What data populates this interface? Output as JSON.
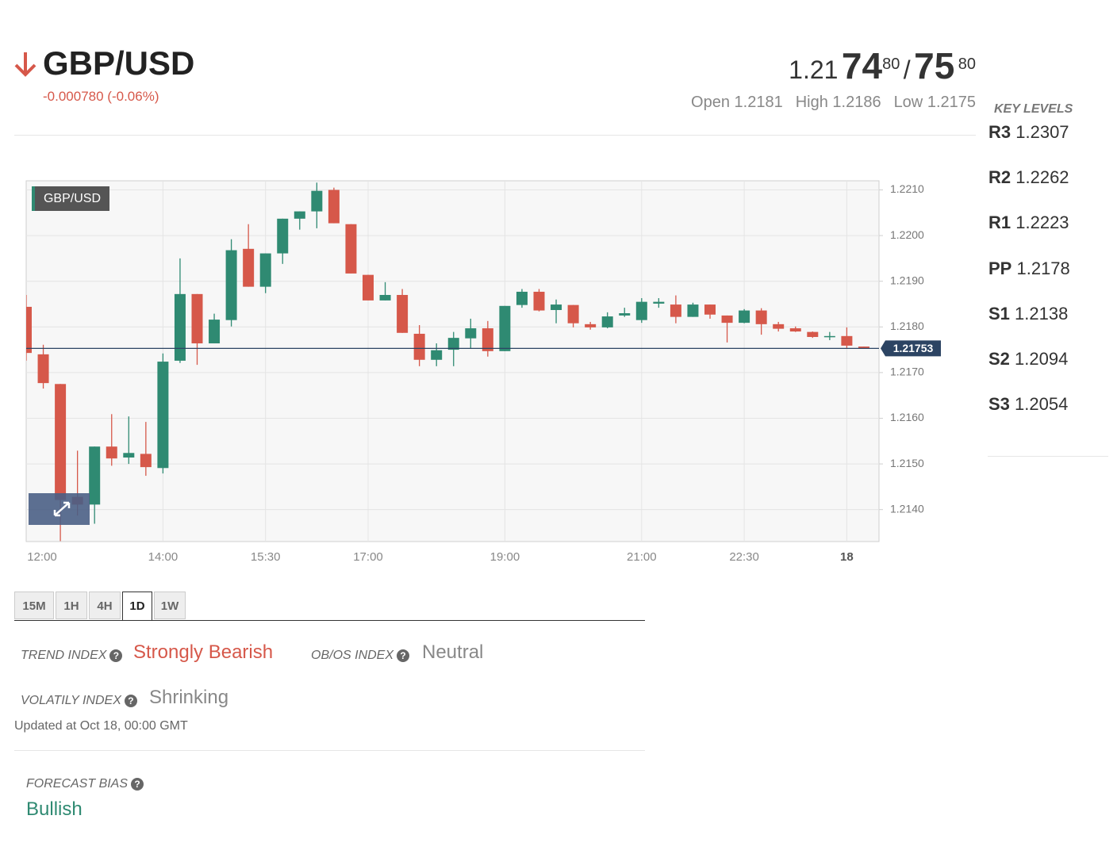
{
  "header": {
    "symbol": "GBP/USD",
    "change": "-0.000780 (-0.06%)",
    "bid": {
      "big": "1.21",
      "pips": "74",
      "fraction": "80"
    },
    "separator": "/",
    "ask": {
      "pips": "75",
      "fraction": "80"
    },
    "stats": [
      {
        "label": "Open",
        "value": "1.2181"
      },
      {
        "label": "High",
        "value": "1.2186"
      },
      {
        "label": "Low",
        "value": "1.2175"
      }
    ]
  },
  "key_levels": {
    "title": "KEY LEVELS",
    "levels": [
      {
        "name": "R3",
        "value": "1.2307"
      },
      {
        "name": "R2",
        "value": "1.2262"
      },
      {
        "name": "R1",
        "value": "1.2223"
      },
      {
        "name": "PP",
        "value": "1.2178"
      },
      {
        "name": "S1",
        "value": "1.2138"
      },
      {
        "name": "S2",
        "value": "1.2094"
      },
      {
        "name": "S3",
        "value": "1.2054"
      }
    ]
  },
  "chart_data": {
    "type": "candlestick",
    "label": "GBP/USD",
    "categories": [
      "12:00",
      null,
      null,
      null,
      null,
      null,
      null,
      null,
      "14:00",
      null,
      null,
      null,
      null,
      null,
      "15:30",
      null,
      null,
      null,
      null,
      null,
      "17:00",
      null,
      null,
      null,
      null,
      null,
      null,
      null,
      "19:00",
      null,
      null,
      null,
      null,
      null,
      null,
      null,
      "21:00",
      null,
      null,
      null,
      null,
      null,
      "22:30",
      null,
      null,
      null,
      null,
      null,
      "18",
      null
    ],
    "open": [
      1.21844,
      1.2174,
      1.21675,
      1.21428,
      1.21411,
      1.21538,
      1.21514,
      1.21522,
      1.21491,
      1.21726,
      1.21872,
      1.21764,
      1.21815,
      1.21971,
      1.21888,
      1.21961,
      1.22037,
      1.22053,
      1.221,
      1.22025,
      1.21914,
      1.21858,
      1.2187,
      1.21785,
      1.21728,
      1.2175,
      1.21775,
      1.21797,
      1.21747,
      1.21848,
      1.21877,
      1.21837,
      1.21848,
      1.21806,
      1.21799,
      1.21825,
      1.21815,
      1.21851,
      1.21849,
      1.21822,
      1.21849,
      1.21825,
      1.21809,
      1.21836,
      1.21806,
      1.21797,
      1.21789,
      1.21778,
      1.2178,
      1.21757
    ],
    "high": [
      1.2187,
      1.21761,
      1.21675,
      1.21529,
      1.21538,
      1.21609,
      1.21604,
      1.21592,
      1.21742,
      1.2195,
      1.21872,
      1.21829,
      1.21992,
      1.22025,
      1.21961,
      1.22037,
      1.22053,
      1.22116,
      1.22105,
      1.22025,
      1.21914,
      1.21898,
      1.21883,
      1.21804,
      1.21764,
      1.21789,
      1.21818,
      1.21813,
      1.21846,
      1.21883,
      1.21883,
      1.2186,
      1.21848,
      1.21811,
      1.21832,
      1.21842,
      1.21863,
      1.21863,
      1.21869,
      1.21853,
      1.21849,
      1.21825,
      1.21839,
      1.21841,
      1.21811,
      1.21801,
      1.2179,
      1.21789,
      1.21799,
      1.21757
    ],
    "low": [
      1.21726,
      1.21665,
      1.21331,
      1.21387,
      1.21369,
      1.21496,
      1.215,
      1.21474,
      1.21479,
      1.21721,
      1.21717,
      1.21764,
      1.21801,
      1.21888,
      1.21874,
      1.21938,
      1.22013,
      1.22016,
      1.22027,
      1.21917,
      1.21858,
      1.21858,
      1.21787,
      1.21714,
      1.21714,
      1.21714,
      1.21752,
      1.21735,
      1.21747,
      1.21842,
      1.21834,
      1.21808,
      1.21799,
      1.21794,
      1.21797,
      1.21822,
      1.21809,
      1.21842,
      1.21808,
      1.21822,
      1.21818,
      1.21766,
      1.21808,
      1.21783,
      1.2179,
      1.21789,
      1.21776,
      1.21771,
      1.21752,
      1.21753
    ],
    "close": [
      1.21743,
      1.21677,
      1.21421,
      1.21411,
      1.21538,
      1.21512,
      1.21524,
      1.21493,
      1.21724,
      1.21872,
      1.21764,
      1.21816,
      1.21968,
      1.21888,
      1.21961,
      1.22037,
      1.22053,
      1.22098,
      1.22027,
      1.21917,
      1.21858,
      1.2187,
      1.21787,
      1.21728,
      1.21749,
      1.21776,
      1.21797,
      1.21747,
      1.21846,
      1.21877,
      1.21836,
      1.21849,
      1.21808,
      1.21799,
      1.21823,
      1.2183,
      1.21855,
      1.21855,
      1.21822,
      1.21849,
      1.21827,
      1.21809,
      1.21836,
      1.21806,
      1.21796,
      1.2179,
      1.21778,
      1.2178,
      1.21759,
      1.21753
    ],
    "up_color": "#2f8a72",
    "down_color": "#d6584a",
    "ylim": [
      1.2133,
      1.2212
    ],
    "yticks": [
      {
        "value": 1.221,
        "label": "1.2210"
      },
      {
        "value": 1.22,
        "label": "1.2200"
      },
      {
        "value": 1.219,
        "label": "1.2190"
      },
      {
        "value": 1.218,
        "label": "1.2180"
      },
      {
        "value": 1.217,
        "label": "1.2170"
      },
      {
        "value": 1.216,
        "label": "1.2160"
      },
      {
        "value": 1.215,
        "label": "1.2150"
      },
      {
        "value": 1.214,
        "label": "1.2140"
      }
    ],
    "last_price": 1.21753,
    "grid": true
  },
  "timeframes": [
    "15M",
    "1H",
    "4H",
    "1D",
    "1W"
  ],
  "active_timeframe": "1D",
  "indices": [
    {
      "label": "TREND INDEX",
      "value": "Strongly Bearish",
      "color": "#d6584a"
    },
    {
      "label": "OB/OS INDEX",
      "value": "Neutral",
      "color": "#888888"
    },
    {
      "label": "VOLATILY INDEX",
      "value": "Shrinking",
      "color": "#888888"
    }
  ],
  "updated": "Updated at Oct 18, 00:00 GMT",
  "forecast": {
    "label": "FORECAST BIAS",
    "value": "Bullish",
    "color": "#2f8a72"
  }
}
